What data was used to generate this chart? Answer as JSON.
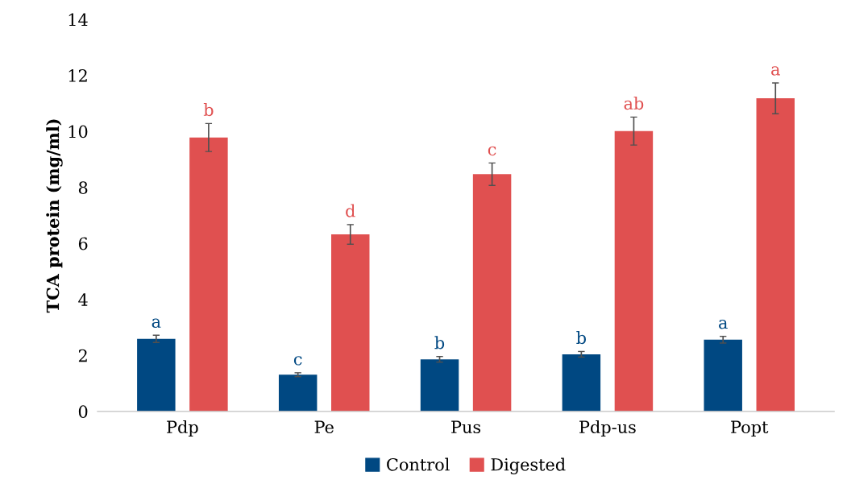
{
  "chart_data": {
    "type": "bar",
    "ylabel": "TCA protein (mg/ml)",
    "categories": [
      "Pdp",
      "Pe",
      "Pus",
      "Pdp-us",
      "Popt"
    ],
    "series": [
      {
        "name": "Control",
        "color": "#004882",
        "values": [
          2.59,
          1.31,
          1.86,
          2.04,
          2.56
        ],
        "errors": [
          0.13,
          0.07,
          0.1,
          0.1,
          0.12
        ],
        "value_labels": [
          "a",
          "c",
          "b",
          "b",
          "a"
        ]
      },
      {
        "name": "Digested",
        "color": "#e05050",
        "values": [
          9.78,
          6.32,
          8.47,
          10.01,
          11.18
        ],
        "errors": [
          0.5,
          0.35,
          0.4,
          0.5,
          0.55
        ],
        "value_labels": [
          "b",
          "d",
          "c",
          "ab",
          "a"
        ]
      }
    ],
    "ylim": [
      0,
      14
    ],
    "yticks": [
      0,
      2,
      4,
      6,
      8,
      10,
      12,
      14
    ],
    "grid": false,
    "legend": "bottom"
  }
}
